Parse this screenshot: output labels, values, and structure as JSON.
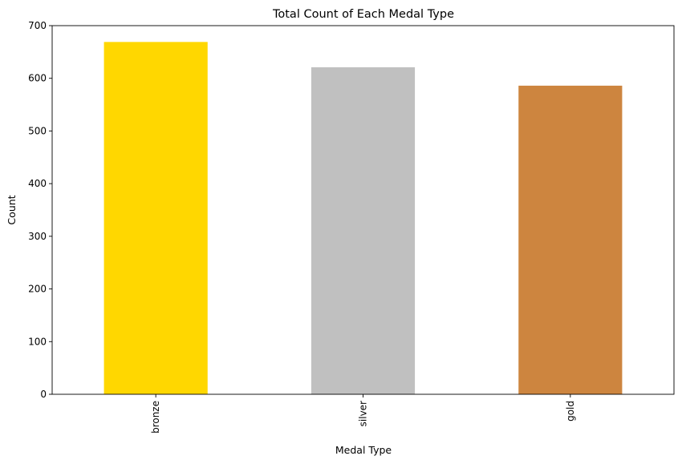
{
  "chart_data": {
    "type": "bar",
    "title": "Total Count of Each Medal Type",
    "xlabel": "Medal Type",
    "ylabel": "Count",
    "categories": [
      "bronze",
      "silver",
      "gold"
    ],
    "values": [
      669,
      621,
      586
    ],
    "bar_colors": [
      "#FFD700",
      "#C0C0C0",
      "#CD853F"
    ],
    "ylim": [
      0,
      700
    ],
    "yticks": [
      0,
      100,
      200,
      300,
      400,
      500,
      600,
      700
    ],
    "grid": false,
    "legend": "none"
  }
}
